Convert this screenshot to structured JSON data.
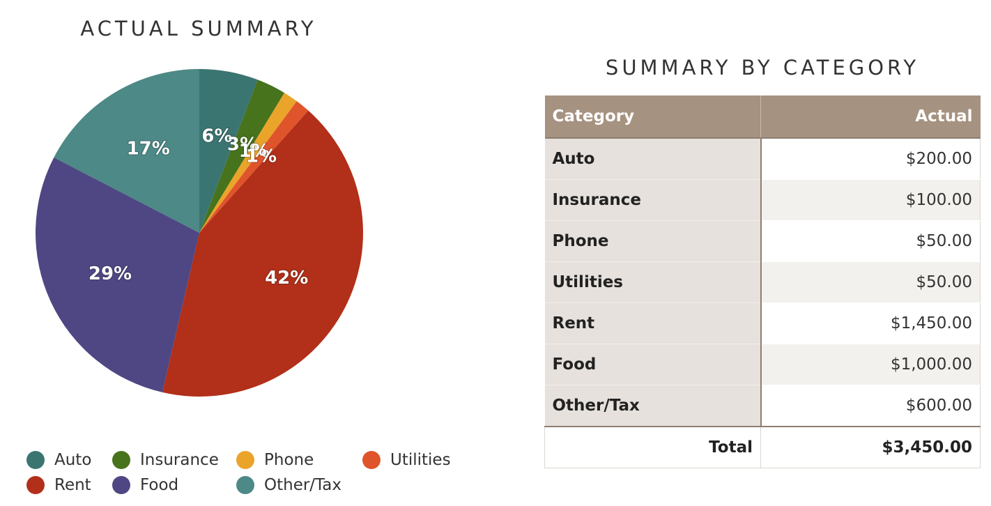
{
  "pie": {
    "title": "ACTUAL SUMMARY"
  },
  "table": {
    "title": "SUMMARY BY CATEGORY",
    "header_category": "Category",
    "header_actual": "Actual",
    "rows": [
      {
        "category": "Auto",
        "actual": "$200.00"
      },
      {
        "category": "Insurance",
        "actual": "$100.00"
      },
      {
        "category": "Phone",
        "actual": "$50.00"
      },
      {
        "category": "Utilities",
        "actual": "$50.00"
      },
      {
        "category": "Rent",
        "actual": "$1,450.00"
      },
      {
        "category": "Food",
        "actual": "$1,000.00"
      },
      {
        "category": "Other/Tax",
        "actual": "$600.00"
      }
    ],
    "total_label": "Total",
    "total_value": "$3,450.00"
  },
  "chart_data": {
    "type": "pie",
    "title": "ACTUAL SUMMARY",
    "categories": [
      "Auto",
      "Insurance",
      "Phone",
      "Utilities",
      "Rent",
      "Food",
      "Other/Tax"
    ],
    "values": [
      200,
      100,
      50,
      50,
      1450,
      1000,
      600
    ],
    "labels": [
      "6%",
      "3%",
      "1%",
      "1%",
      "42%",
      "29%",
      "17%"
    ],
    "colors": [
      "#3b7572",
      "#46731c",
      "#eaa42a",
      "#e0542b",
      "#b22f19",
      "#4f4783",
      "#4d8987"
    ],
    "legend_position": "bottom"
  }
}
